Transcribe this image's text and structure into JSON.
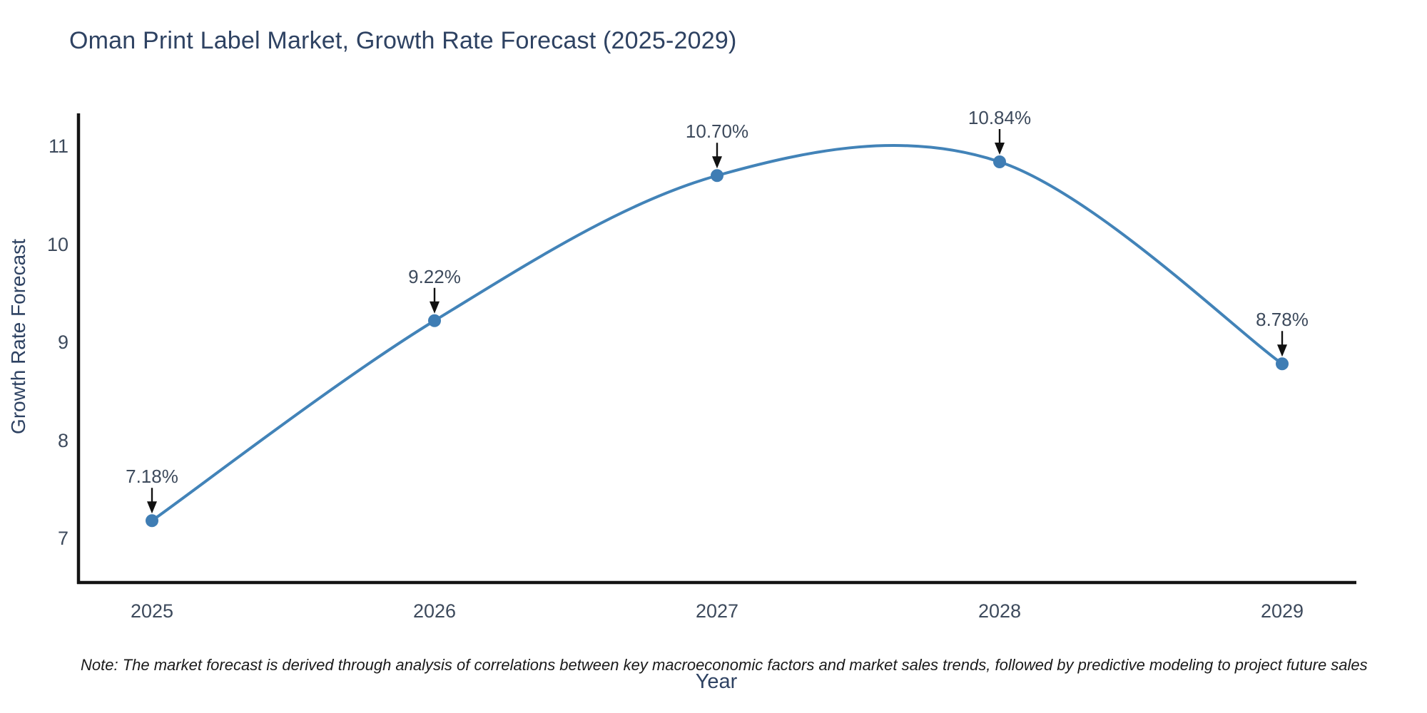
{
  "note": "Note: The market forecast is derived through analysis of correlations between key macroeconomic factors and market sales trends, followed by predictive modeling to project future sales",
  "chart_data": {
    "type": "line",
    "title": "Oman Print Label Market, Growth Rate Forecast (2025-2029)",
    "xlabel": "Year",
    "ylabel": "Growth Rate Forecast",
    "x": [
      2025,
      2026,
      2027,
      2028,
      2029
    ],
    "y": [
      7.18,
      9.22,
      10.7,
      10.84,
      8.78
    ],
    "point_labels": [
      "7.18%",
      "9.22%",
      "10.70%",
      "10.84%",
      "8.78%"
    ],
    "xticks": [
      "2025",
      "2026",
      "2027",
      "2028",
      "2029"
    ],
    "yticks": [
      7,
      8,
      9,
      10,
      11
    ],
    "ylim": [
      6.55,
      11.35
    ],
    "line_shape": "spline",
    "grid": false,
    "legend": "none",
    "marker_style": "circle",
    "annotation_style": "value label with black down arrow to point",
    "colors": {
      "line": "#4283b8",
      "marker": "#3f7db4",
      "axis": "#141414",
      "title_text": "#2e4262",
      "tick_text": "#3d4a5c",
      "arrow": "#111111",
      "note_text": "#1a1a1a",
      "background": "#ffffff"
    }
  }
}
